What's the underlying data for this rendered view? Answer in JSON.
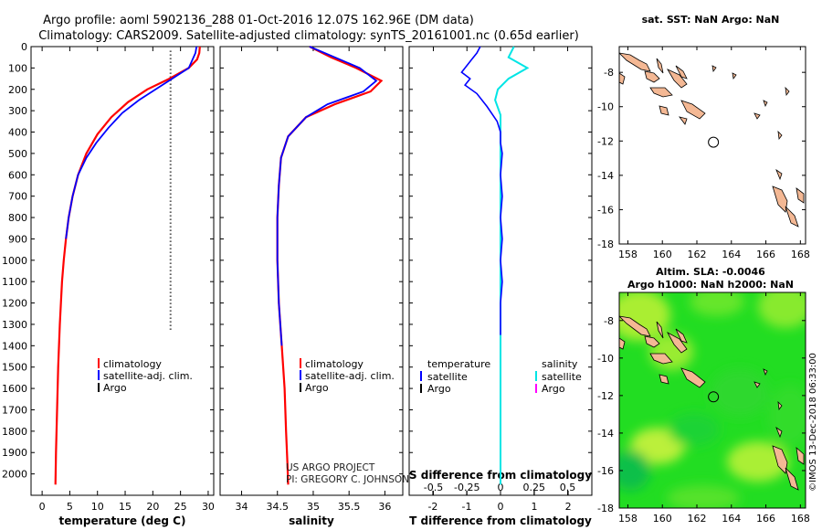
{
  "header": {
    "line1": "Argo profile: aoml 5902136_288 01-Oct-2016 12.07S 162.96E (DM data)",
    "line2": "Climatology: CARS2009. Satellite-adjusted climatology: synTS_20161001.nc (0.65d earlier)"
  },
  "credits": {
    "project": "US ARGO PROJECT",
    "pi": "PI: GREGORY C. JOHNSON",
    "timestamp": "©IMOS 13-Dec-2018 06:33:00"
  },
  "colors": {
    "climatology": "#ff0000",
    "satellite": "#0000ff",
    "argo": "#000000",
    "salinity_satellite": "#00e5e5",
    "salinity_argo": "#ff00ff",
    "land": "#f4b894",
    "sla_field": "#22dd22"
  },
  "legend_profiles": {
    "climatology": "climatology",
    "satellite": "satellite-adj. clim.",
    "argo": "Argo"
  },
  "legend_diff": {
    "temperature_head": "temperature",
    "salinity_head": "salinity",
    "satellite": "satellite",
    "argo": "Argo"
  },
  "chart_data": [
    {
      "type": "line",
      "id": "temperature",
      "title": "",
      "xlabel": "temperature (deg C)",
      "ylabel": "",
      "xlim": [
        -2,
        31
      ],
      "ylim": [
        2100,
        0
      ],
      "xticks": [
        0,
        5,
        10,
        15,
        20,
        25,
        30
      ],
      "yticks": [
        0,
        100,
        200,
        300,
        400,
        500,
        600,
        700,
        800,
        900,
        1000,
        1100,
        1200,
        1300,
        1400,
        1500,
        1600,
        1700,
        1800,
        1900,
        2000
      ],
      "series": [
        {
          "name": "climatology",
          "color": "#ff0000",
          "x": [
            28.5,
            28.4,
            28.0,
            26.5,
            23.0,
            19.0,
            15.5,
            12.5,
            10.0,
            8.0,
            6.5,
            5.5,
            4.8,
            4.3,
            3.9,
            3.6,
            3.2,
            2.9,
            2.7,
            2.5,
            2.4
          ],
          "y": [
            0,
            30,
            60,
            100,
            150,
            200,
            260,
            330,
            410,
            500,
            600,
            700,
            800,
            900,
            1000,
            1100,
            1300,
            1500,
            1700,
            1900,
            2050
          ]
        },
        {
          "name": "satellite-adj. clim.",
          "color": "#0000ff",
          "x": [
            27.9,
            27.7,
            26.5,
            23.5,
            20.5,
            17.5,
            14.5,
            12.0,
            9.8,
            8.0,
            6.5,
            5.5,
            4.8,
            4.3
          ],
          "y": [
            0,
            30,
            100,
            150,
            200,
            250,
            310,
            380,
            450,
            520,
            600,
            700,
            800,
            900
          ]
        }
      ],
      "annotations": [
        "dotted Argo sample-depth markers near 23 deg C"
      ]
    },
    {
      "type": "line",
      "id": "salinity",
      "title": "",
      "xlabel": "salinity",
      "ylabel": "",
      "xlim": [
        33.7,
        36.25
      ],
      "ylim": [
        2100,
        0
      ],
      "xticks": [
        34,
        34.5,
        35,
        35.5,
        36
      ],
      "series": [
        {
          "name": "climatology",
          "color": "#ff0000",
          "x": [
            34.95,
            35.25,
            35.6,
            35.95,
            35.8,
            35.3,
            34.9,
            34.65,
            34.55,
            34.52,
            34.5,
            34.5,
            34.52,
            34.56,
            34.6,
            34.62,
            34.64,
            34.65
          ],
          "y": [
            0,
            50,
            100,
            160,
            210,
            270,
            330,
            420,
            520,
            650,
            800,
            1000,
            1200,
            1400,
            1600,
            1800,
            1950,
            2050
          ]
        },
        {
          "name": "satellite-adj. clim.",
          "color": "#0000ff",
          "x": [
            34.95,
            35.3,
            35.65,
            35.88,
            35.7,
            35.2,
            34.9,
            34.65,
            34.55,
            34.52,
            34.5,
            34.5,
            34.52,
            34.56
          ],
          "y": [
            0,
            50,
            100,
            160,
            210,
            270,
            330,
            420,
            520,
            650,
            800,
            1000,
            1200,
            1400
          ]
        }
      ]
    },
    {
      "type": "line",
      "id": "difference",
      "title": "S difference from climatology",
      "xlabel": "T difference from climatology",
      "xlim_T": [
        -2.7,
        2.7
      ],
      "xticks_T": [
        -2,
        -1,
        0,
        1,
        2
      ],
      "xlim_S": [
        -0.68,
        0.68
      ],
      "xticks_S": [
        -0.5,
        -0.25,
        0,
        0.25,
        0.5
      ],
      "xtick_labels_S": [
        "-0.5",
        "-0.25",
        "0",
        "0.25",
        "0.5"
      ],
      "ylim": [
        2100,
        0
      ],
      "series": [
        {
          "name": "temperature satellite",
          "color": "#0000ff",
          "axis": "T",
          "x": [
            -0.6,
            -0.7,
            -0.85,
            -1.0,
            -1.15,
            -0.9,
            -1.05,
            -0.7,
            -0.4,
            -0.1,
            0.0,
            0.0,
            0.05,
            0.0,
            0.05,
            0.0,
            0.05,
            0.0,
            0.05,
            0.0,
            0.0
          ],
          "y": [
            0,
            30,
            60,
            90,
            120,
            150,
            180,
            220,
            280,
            350,
            400,
            450,
            500,
            600,
            700,
            800,
            900,
            1000,
            1100,
            1200,
            1350
          ]
        },
        {
          "name": "salinity satellite",
          "color": "#00e5e5",
          "axis": "S",
          "x": [
            0.1,
            0.06,
            0.2,
            0.06,
            -0.02,
            -0.04,
            0.0,
            0.0,
            0.0,
            0.0
          ],
          "y": [
            0,
            50,
            100,
            150,
            200,
            250,
            320,
            500,
            1000,
            2050
          ]
        }
      ]
    },
    {
      "type": "scatter",
      "id": "sst-map",
      "title": "sat. SST: NaN Argo: NaN",
      "xlim": [
        157.5,
        168.3
      ],
      "ylim": [
        -18,
        -6.5
      ],
      "xticks": [
        158,
        160,
        162,
        164,
        166,
        168
      ],
      "yticks": [
        -8,
        -10,
        -12,
        -14,
        -16,
        -18
      ],
      "float_position": {
        "lon": 162.96,
        "lat": -12.07
      }
    },
    {
      "type": "heatmap",
      "id": "sla-map",
      "title": "Altim. SLA: -0.0046",
      "subtitle": "Argo h1000: NaN h2000: NaN",
      "xlim": [
        157.5,
        168.3
      ],
      "ylim": [
        -18,
        -6.5
      ],
      "xticks": [
        158,
        160,
        162,
        164,
        166,
        168
      ],
      "yticks": [
        -8,
        -10,
        -12,
        -14,
        -16,
        -18
      ],
      "float_position": {
        "lon": 162.96,
        "lat": -12.07
      }
    }
  ]
}
